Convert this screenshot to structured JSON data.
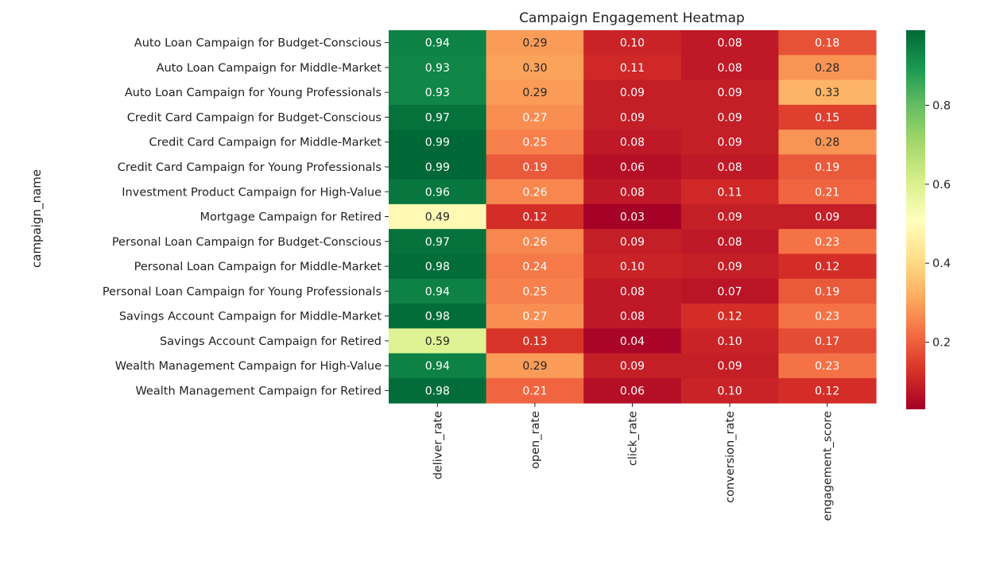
{
  "chart_data": {
    "type": "heatmap",
    "title": "Campaign Engagement Heatmap",
    "xlabel": "",
    "ylabel": "campaign_name",
    "x_categories": [
      "deliver_rate",
      "open_rate",
      "click_rate",
      "conversion_rate",
      "engagement_score"
    ],
    "y_categories": [
      "Auto Loan Campaign for Budget-Conscious",
      "Auto Loan Campaign for Middle-Market",
      "Auto Loan Campaign for Young Professionals",
      "Credit Card Campaign for Budget-Conscious",
      "Credit Card Campaign for Middle-Market",
      "Credit Card Campaign for Young Professionals",
      "Investment Product Campaign for High-Value",
      "Mortgage Campaign for Retired",
      "Personal Loan Campaign for Budget-Conscious",
      "Personal Loan Campaign for Middle-Market",
      "Personal Loan Campaign for Young Professionals",
      "Savings Account Campaign for Middle-Market",
      "Savings Account Campaign for Retired",
      "Wealth Management Campaign for High-Value",
      "Wealth Management Campaign for Retired"
    ],
    "values": [
      [
        0.94,
        0.29,
        0.1,
        0.08,
        0.18
      ],
      [
        0.93,
        0.3,
        0.11,
        0.08,
        0.28
      ],
      [
        0.93,
        0.29,
        0.09,
        0.09,
        0.33
      ],
      [
        0.97,
        0.27,
        0.09,
        0.09,
        0.15
      ],
      [
        0.99,
        0.25,
        0.08,
        0.09,
        0.28
      ],
      [
        0.99,
        0.19,
        0.06,
        0.08,
        0.19
      ],
      [
        0.96,
        0.26,
        0.08,
        0.11,
        0.21
      ],
      [
        0.49,
        0.12,
        0.03,
        0.09,
        0.09
      ],
      [
        0.97,
        0.26,
        0.09,
        0.08,
        0.23
      ],
      [
        0.98,
        0.24,
        0.1,
        0.09,
        0.12
      ],
      [
        0.94,
        0.25,
        0.08,
        0.07,
        0.19
      ],
      [
        0.98,
        0.27,
        0.08,
        0.12,
        0.23
      ],
      [
        0.59,
        0.13,
        0.04,
        0.1,
        0.17
      ],
      [
        0.94,
        0.29,
        0.09,
        0.09,
        0.23
      ],
      [
        0.98,
        0.21,
        0.06,
        0.1,
        0.12
      ]
    ],
    "annotations": true,
    "colormap": "RdYlGn",
    "color_range": [
      0.03,
      0.99
    ],
    "colorbar_ticks": [
      0.2,
      0.4,
      0.6,
      0.8
    ],
    "colorbar_labels": [
      "0.2",
      "0.4",
      "0.6",
      "0.8"
    ],
    "grid": false,
    "legend": "colorbar-right"
  }
}
